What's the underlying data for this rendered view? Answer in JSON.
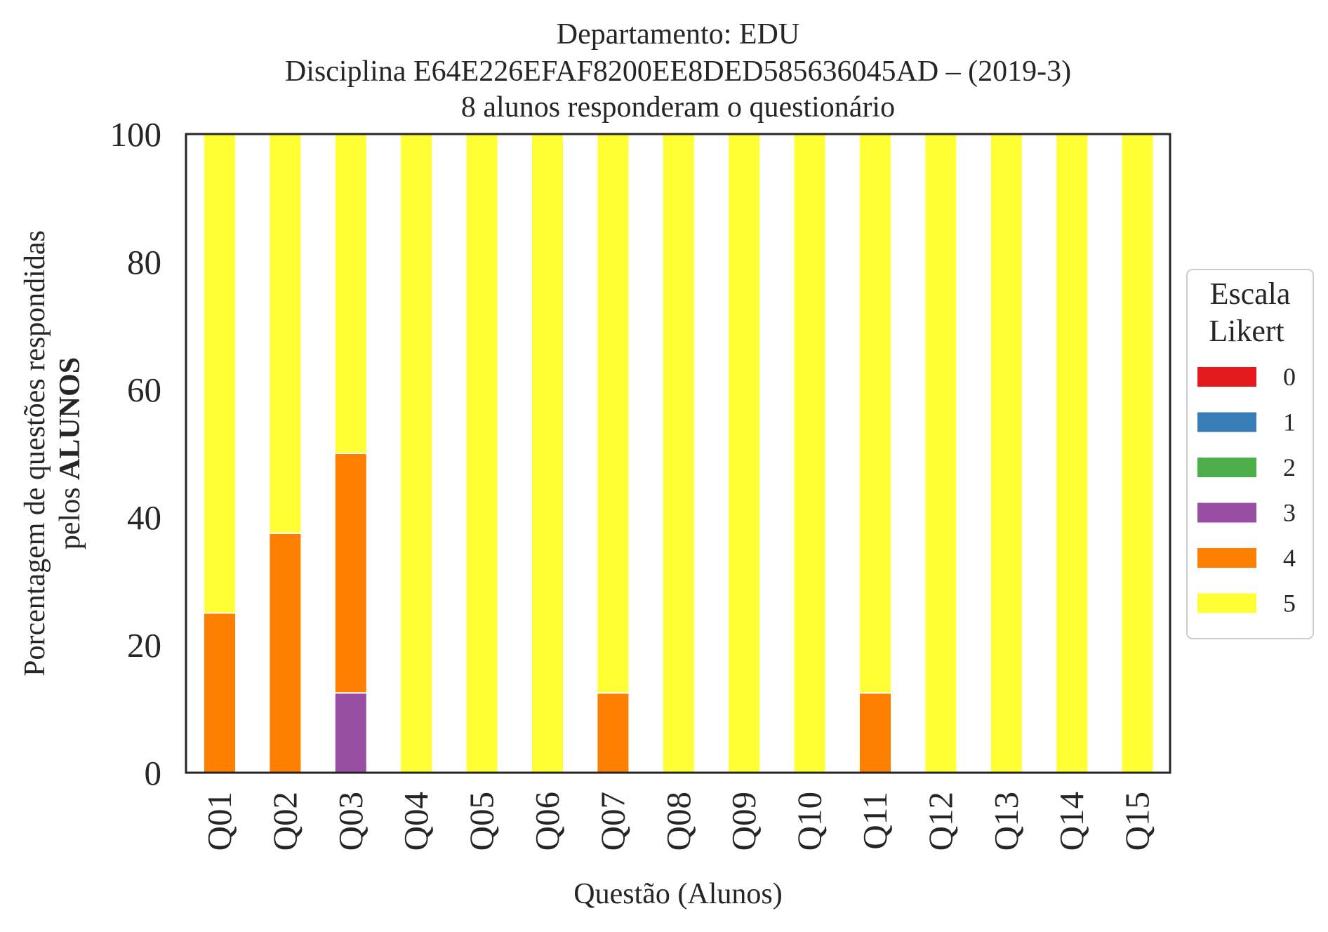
{
  "chart_data": {
    "type": "bar",
    "stacked": true,
    "title_lines": [
      "Departamento: EDU",
      "Disciplina E64E226EFAF8200EE8DED585636045AD – (2019-3)",
      "8 alunos responderam o questionário"
    ],
    "xlabel": "Questão (Alunos)",
    "ylabel_line1": "Porcentagem de questões respondidas",
    "ylabel_line2_prefix": "pelos ",
    "ylabel_line2_bold": "ALUNOS",
    "ylim": [
      0,
      100
    ],
    "yticks": [
      "0",
      "20",
      "40",
      "60",
      "80",
      "100"
    ],
    "grid": false,
    "legend_position": "center-right outside",
    "legend_title_lines": [
      "Escala",
      "Likert"
    ],
    "categories": [
      "Q01",
      "Q02",
      "Q03",
      "Q04",
      "Q05",
      "Q06",
      "Q07",
      "Q08",
      "Q09",
      "Q10",
      "Q11",
      "Q12",
      "Q13",
      "Q14",
      "Q15"
    ],
    "series": [
      {
        "name": "0",
        "color": "#e41a1c",
        "values": [
          0,
          0,
          0,
          0,
          0,
          0,
          0,
          0,
          0,
          0,
          0,
          0,
          0,
          0,
          0
        ]
      },
      {
        "name": "1",
        "color": "#377eb8",
        "values": [
          0,
          0,
          0,
          0,
          0,
          0,
          0,
          0,
          0,
          0,
          0,
          0,
          0,
          0,
          0
        ]
      },
      {
        "name": "2",
        "color": "#4daf4a",
        "values": [
          0,
          0,
          0,
          0,
          0,
          0,
          0,
          0,
          0,
          0,
          0,
          0,
          0,
          0,
          0
        ]
      },
      {
        "name": "3",
        "color": "#984ea3",
        "values": [
          0,
          0,
          12.5,
          0,
          0,
          0,
          0,
          0,
          0,
          0,
          0,
          0,
          0,
          0,
          0
        ]
      },
      {
        "name": "4",
        "color": "#ff7f00",
        "values": [
          25,
          37.5,
          37.5,
          0,
          0,
          0,
          12.5,
          0,
          0,
          0,
          12.5,
          0,
          0,
          0,
          0
        ]
      },
      {
        "name": "5",
        "color": "#ffff33",
        "values": [
          75,
          62.5,
          50,
          100,
          100,
          100,
          87.5,
          100,
          100,
          100,
          87.5,
          100,
          100,
          100,
          100
        ]
      }
    ]
  }
}
